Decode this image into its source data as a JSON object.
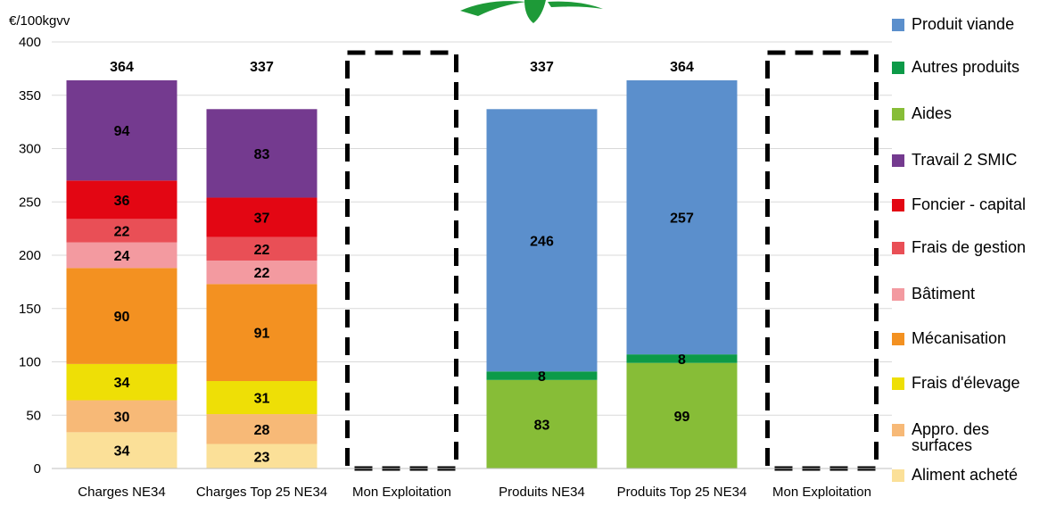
{
  "chart_data": {
    "type": "bar",
    "stacked": true,
    "ylabel": "€/100kgvv",
    "ylim": [
      0,
      400
    ],
    "yticks": [
      0,
      50,
      100,
      150,
      200,
      250,
      300,
      350,
      400
    ],
    "categories": [
      "Charges NE34",
      "Charges Top 25 NE34",
      "Mon Exploitation",
      "Produits NE34",
      "Produits Top 25 NE34",
      "Mon Exploitation"
    ],
    "totals": [
      364,
      337,
      null,
      337,
      364,
      null
    ],
    "empty_dashed_columns": [
      2,
      5
    ],
    "series": [
      {
        "name": "Aliment acheté",
        "color": "#FBE098",
        "values": [
          34,
          23,
          null,
          null,
          null,
          null
        ],
        "labels": [
          "34",
          "23",
          "",
          "",
          "",
          ""
        ]
      },
      {
        "name": "Appro. des surfaces",
        "color": "#F7B977",
        "values": [
          30,
          28,
          null,
          null,
          null,
          null
        ],
        "labels": [
          "30",
          "28",
          "",
          "",
          "",
          ""
        ]
      },
      {
        "name": "Frais d'élevage",
        "color": "#EEDF06",
        "values": [
          34,
          31,
          null,
          null,
          null,
          null
        ],
        "labels": [
          "34",
          "31",
          "",
          "",
          "",
          ""
        ]
      },
      {
        "name": "Mécanisation",
        "color": "#F39121",
        "values": [
          90,
          91,
          null,
          null,
          null,
          null
        ],
        "labels": [
          "90",
          "91",
          "",
          "",
          "",
          ""
        ]
      },
      {
        "name": "Bâtiment",
        "color": "#F39AA0",
        "values": [
          24,
          22,
          null,
          null,
          null,
          null
        ],
        "labels": [
          "24",
          "22",
          "",
          "",
          "",
          ""
        ]
      },
      {
        "name": "Frais de gestion",
        "color": "#E94F56",
        "values": [
          22,
          22,
          null,
          null,
          null,
          null
        ],
        "labels": [
          "22",
          "22",
          "",
          "",
          "",
          ""
        ]
      },
      {
        "name": "Foncier - capital",
        "color": "#E30613",
        "values": [
          36,
          37,
          null,
          null,
          null,
          null
        ],
        "labels": [
          "36",
          "37",
          "",
          "",
          "",
          ""
        ]
      },
      {
        "name": "Travail 2 SMIC",
        "color": "#743A8F",
        "values": [
          94,
          83,
          null,
          null,
          null,
          null
        ],
        "labels": [
          "94",
          "83",
          "",
          "",
          "",
          ""
        ]
      },
      {
        "name": "Aides",
        "color": "#87BD37",
        "values": [
          null,
          null,
          null,
          83,
          99,
          null
        ],
        "labels": [
          "",
          "",
          "",
          "83",
          "99",
          ""
        ]
      },
      {
        "name": "Autres produits",
        "color": "#0C9A48",
        "values": [
          null,
          null,
          null,
          8,
          8,
          null
        ],
        "labels": [
          "",
          "",
          "",
          "8",
          "8",
          ""
        ]
      },
      {
        "name": "Produit viande",
        "color": "#5B8FCC",
        "values": [
          null,
          null,
          null,
          246,
          257,
          null
        ],
        "labels": [
          "",
          "",
          "",
          "246",
          "257",
          ""
        ]
      }
    ],
    "legend": [
      {
        "label": "Produit viande",
        "color": "#5B8FCC"
      },
      {
        "label": "Autres produits",
        "color": "#0C9A48"
      },
      {
        "label": "Aides",
        "color": "#87BD37"
      },
      {
        "label": "Travail 2 SMIC",
        "color": "#743A8F"
      },
      {
        "label": "Foncier - capital",
        "color": "#E30613"
      },
      {
        "label": "Frais de gestion",
        "color": "#E94F56"
      },
      {
        "label": "Bâtiment",
        "color": "#F39AA0"
      },
      {
        "label": "Mécanisation",
        "color": "#F39121"
      },
      {
        "label": "Frais d'élevage",
        "color": "#EEDF06"
      },
      {
        "label": "Appro. des surfaces",
        "color": "#F7B977"
      },
      {
        "label": "Aliment acheté",
        "color": "#FBE098"
      }
    ],
    "legend_position": "right",
    "grid": true,
    "logo_color": "#1E9A38"
  }
}
